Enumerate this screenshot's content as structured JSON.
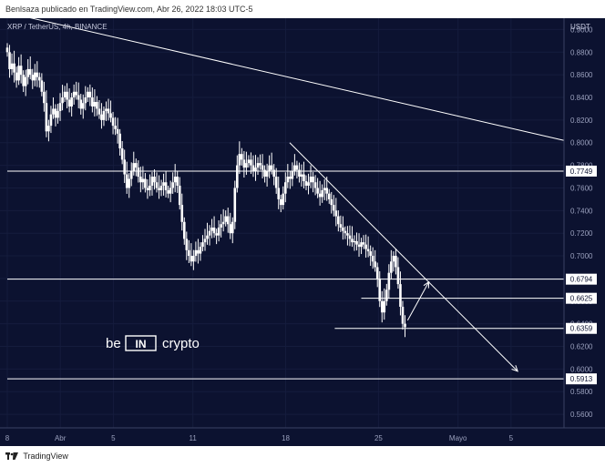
{
  "header": {
    "publisher": "Benlsaza publicado en TradingView.com, Abr 26, 2022 18:03 UTC-5"
  },
  "footer": {
    "brand": "TradingView",
    "logo_icon": "tradingview-logo-icon"
  },
  "watermark": {
    "text_left": "be",
    "text_mid": "IN",
    "text_right": "crypto"
  },
  "colors": {
    "background": "#0c1230",
    "candle_up": "#ffffff",
    "candle_down": "#ffffff",
    "lines": "#ffffff"
  },
  "chart_data": {
    "type": "candlestick",
    "title": "XRP / TetherUS, 4h, BINANCE",
    "currency": "USDT",
    "ylim": [
      0.548,
      0.91
    ],
    "y_ticks": [
      "0.9000",
      "0.8800",
      "0.8600",
      "0.8400",
      "0.8200",
      "0.8000",
      "0.7800",
      "0.7600",
      "0.7400",
      "0.7200",
      "0.7000",
      "0.6800",
      "0.6600",
      "0.6400",
      "0.6200",
      "0.6000",
      "0.5800",
      "0.5600"
    ],
    "y_tick_values": [
      0.9,
      0.88,
      0.86,
      0.84,
      0.82,
      0.8,
      0.78,
      0.76,
      0.74,
      0.72,
      0.7,
      0.68,
      0.66,
      0.64,
      0.62,
      0.6,
      0.58,
      0.56
    ],
    "x_ticks": [
      {
        "label": "8",
        "day": 0
      },
      {
        "label": "Abr",
        "day": 4
      },
      {
        "label": "5",
        "day": 8
      },
      {
        "label": "11",
        "day": 14
      },
      {
        "label": "18",
        "day": 21
      },
      {
        "label": "25",
        "day": 28
      },
      {
        "label": "Mayo",
        "day": 34
      },
      {
        "label": "5",
        "day": 38
      }
    ],
    "price_labels": [
      {
        "value": 0.7749,
        "label": "0.7749"
      },
      {
        "value": 0.6794,
        "label": "0.6794"
      },
      {
        "value": 0.6625,
        "label": "0.6625"
      },
      {
        "value": 0.6359,
        "label": "0.6359"
      },
      {
        "value": 0.5913,
        "label": "0.5913"
      }
    ],
    "trendlines": [
      {
        "from": {
          "day": 0,
          "price": 0.915
        },
        "to": {
          "day": 42,
          "price": 0.802
        }
      },
      {
        "from": {
          "day": 21.3,
          "price": 0.8
        },
        "to": {
          "day": 38.5,
          "price": 0.598
        },
        "arrow": true
      },
      {
        "from": {
          "day": 30.2,
          "price": 0.643
        },
        "to": {
          "day": 31.8,
          "price": 0.677
        },
        "arrow": true
      }
    ],
    "horizontal_levels": [
      {
        "price": 0.7749,
        "from_day": 0,
        "to_day": 42
      },
      {
        "price": 0.6794,
        "from_day": 0,
        "to_day": 42
      },
      {
        "price": 0.6625,
        "from_day": 26.7,
        "to_day": 42
      },
      {
        "price": 0.6359,
        "from_day": 24.7,
        "to_day": 42
      },
      {
        "price": 0.5913,
        "from_day": 0,
        "to_day": 42
      }
    ],
    "closes": [
      0.88,
      0.865,
      0.87,
      0.862,
      0.855,
      0.868,
      0.86,
      0.85,
      0.858,
      0.865,
      0.86,
      0.855,
      0.862,
      0.858,
      0.855,
      0.845,
      0.835,
      0.81,
      0.815,
      0.825,
      0.83,
      0.822,
      0.828,
      0.835,
      0.84,
      0.845,
      0.838,
      0.832,
      0.84,
      0.845,
      0.842,
      0.838,
      0.83,
      0.835,
      0.84,
      0.845,
      0.84,
      0.832,
      0.836,
      0.83,
      0.825,
      0.82,
      0.828,
      0.83,
      0.826,
      0.822,
      0.815,
      0.812,
      0.808,
      0.795,
      0.785,
      0.772,
      0.76,
      0.768,
      0.775,
      0.782,
      0.778,
      0.77,
      0.765,
      0.768,
      0.76,
      0.758,
      0.762,
      0.77,
      0.765,
      0.76,
      0.758,
      0.762,
      0.765,
      0.758,
      0.755,
      0.76,
      0.765,
      0.77,
      0.762,
      0.745,
      0.73,
      0.715,
      0.705,
      0.7,
      0.695,
      0.7,
      0.705,
      0.702,
      0.708,
      0.712,
      0.715,
      0.718,
      0.722,
      0.725,
      0.72,
      0.718,
      0.725,
      0.728,
      0.73,
      0.735,
      0.728,
      0.72,
      0.73,
      0.76,
      0.78,
      0.79,
      0.785,
      0.778,
      0.782,
      0.785,
      0.78,
      0.775,
      0.778,
      0.782,
      0.78,
      0.776,
      0.77,
      0.775,
      0.78,
      0.776,
      0.77,
      0.76,
      0.75,
      0.745,
      0.755,
      0.765,
      0.77,
      0.768,
      0.775,
      0.78,
      0.776,
      0.77,
      0.772,
      0.766,
      0.762,
      0.765,
      0.77,
      0.765,
      0.76,
      0.755,
      0.752,
      0.758,
      0.76,
      0.755,
      0.75,
      0.745,
      0.74,
      0.735,
      0.728,
      0.725,
      0.722,
      0.72,
      0.718,
      0.715,
      0.712,
      0.713,
      0.71,
      0.708,
      0.712,
      0.71,
      0.706,
      0.704,
      0.7,
      0.695,
      0.69,
      0.68,
      0.66,
      0.65,
      0.66,
      0.67,
      0.685,
      0.695,
      0.7,
      0.69,
      0.675,
      0.655,
      0.64,
      0.637
    ]
  }
}
